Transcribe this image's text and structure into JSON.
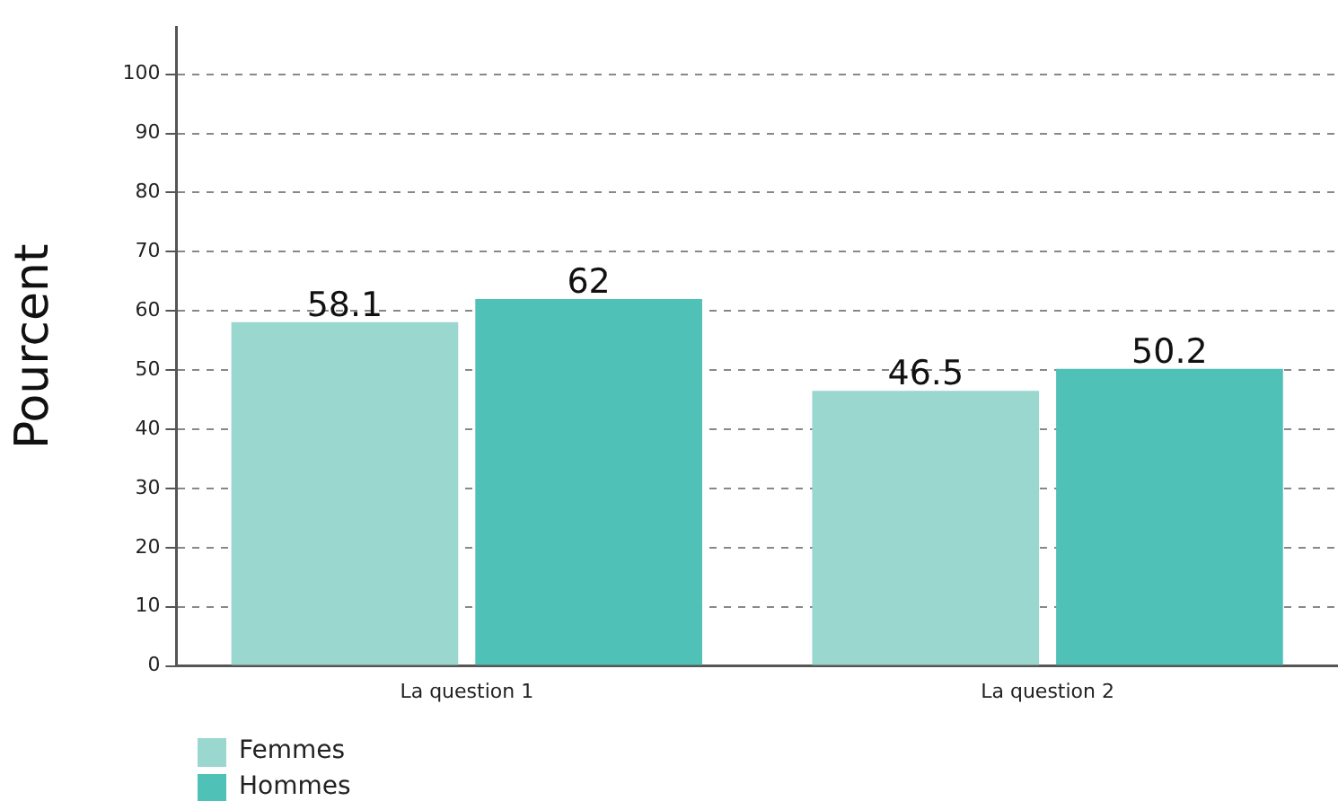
{
  "chart_data": {
    "type": "bar",
    "ylabel": "Pourcent",
    "categories": [
      "La question 1",
      "La question 2"
    ],
    "series": [
      {
        "name": "Femmes",
        "color": "#9ad7cf",
        "values": [
          58.1,
          46.5
        ]
      },
      {
        "name": "Hommes",
        "color": "#4fc1b6",
        "values": [
          62,
          50.2
        ]
      }
    ],
    "ylim": [
      0,
      108
    ],
    "yticks": [
      0,
      10,
      20,
      30,
      40,
      50,
      60,
      70,
      80,
      90,
      100
    ],
    "grid": "y",
    "legend": "bottom left",
    "data_labels": true
  }
}
